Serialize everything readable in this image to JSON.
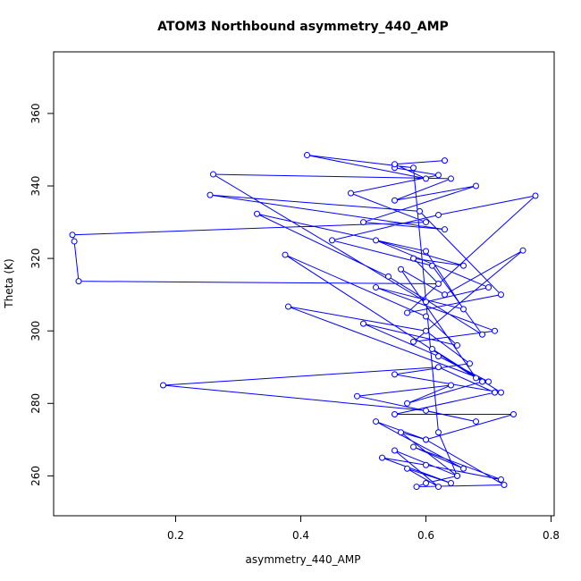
{
  "chart_data": {
    "type": "line",
    "markers": true,
    "title": "ATOM3 Northbound asymmetry_440_AMP",
    "x_label": "asymmetry_440_AMP",
    "y_label": "Theta (K)",
    "color": "#0000ff",
    "xlim": [
      0.005,
      0.805
    ],
    "ylim": [
      249,
      377
    ],
    "xticks": [
      0.2,
      0.4,
      0.6,
      0.8
    ],
    "yticks": [
      260,
      280,
      300,
      320,
      340,
      360
    ],
    "x": [
      0.55,
      0.62,
      0.48,
      0.6,
      0.035,
      0.038,
      0.045,
      0.62,
      0.58,
      0.66,
      0.52,
      0.7,
      0.6,
      0.26,
      0.64,
      0.55,
      0.68,
      0.5,
      0.63,
      0.255,
      0.59,
      0.72,
      0.57,
      0.775,
      0.62,
      0.45,
      0.61,
      0.69,
      0.54,
      0.33,
      0.6,
      0.66,
      0.52,
      0.71,
      0.58,
      0.755,
      0.63,
      0.56,
      0.68,
      0.375,
      0.6,
      0.65,
      0.5,
      0.62,
      0.7,
      0.38,
      0.6,
      0.67,
      0.55,
      0.72,
      0.61,
      0.69,
      0.57,
      0.64,
      0.49,
      0.68,
      0.6,
      0.18,
      0.62,
      0.71,
      0.55,
      0.74,
      0.6,
      0.52,
      0.66,
      0.58,
      0.72,
      0.6,
      0.53,
      0.64,
      0.57,
      0.62,
      0.55,
      0.65,
      0.6,
      0.585,
      0.725,
      0.6,
      0.56,
      0.65,
      0.62,
      0.58,
      0.41,
      0.6,
      0.55,
      0.63
    ],
    "y": [
      345,
      343,
      338,
      330,
      326.5,
      324.7,
      313.7,
      313,
      320,
      318,
      325,
      312,
      308,
      343.2,
      342,
      336,
      340,
      330,
      328,
      337.5,
      333,
      310,
      305,
      337.3,
      332,
      325,
      318,
      299,
      315,
      332.3,
      322,
      306,
      312,
      300,
      297,
      322.2,
      310,
      317,
      287,
      321,
      304,
      296,
      302,
      293,
      286,
      306.7,
      300,
      291,
      288,
      283,
      295,
      286,
      280,
      285,
      282,
      275,
      278,
      285,
      290,
      283,
      277,
      277,
      270,
      275,
      262,
      268,
      259,
      263,
      265,
      258,
      262,
      257,
      267,
      260,
      258,
      257,
      257.5,
      270,
      272,
      260,
      272,
      345,
      348.5,
      342,
      346,
      347
    ]
  }
}
